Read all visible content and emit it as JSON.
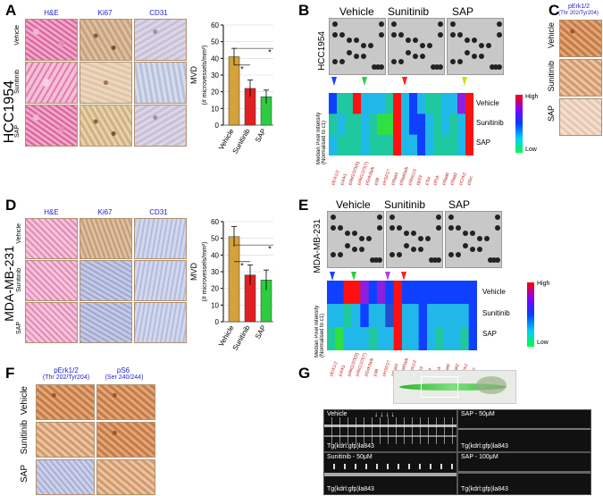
{
  "panel_letters": {
    "a": "A",
    "b": "B",
    "c": "C",
    "d": "D",
    "e": "E",
    "f": "F",
    "g": "G"
  },
  "panel_a": {
    "cell_line": "HCC1954",
    "columns": [
      "H&E",
      "Ki67",
      "CD31"
    ],
    "rows": [
      "Vehicle",
      "Sunitinib",
      "SAP"
    ]
  },
  "panel_d": {
    "cell_line": "MDA-MB-231",
    "columns": [
      "H&E",
      "Ki67",
      "CD31"
    ],
    "rows": [
      "Vehicle",
      "Sunitinib",
      "SAP"
    ]
  },
  "mvd_chart_label": {
    "ylabel_main": "MVD",
    "ylabel_sub": "(# microvessels/mm²)",
    "sig": "*"
  },
  "chart_data": [
    {
      "type": "bar",
      "categories": [
        "Vehicle",
        "Sunitinib",
        "SAP"
      ],
      "values": [
        41,
        22,
        17
      ],
      "errors": [
        5,
        5,
        4
      ],
      "ylabel": "MVD (# microvessels/mm²)",
      "ylim": [
        0,
        60
      ],
      "yticks": [
        0,
        10,
        20,
        30,
        40,
        50,
        60
      ],
      "colors": [
        "#d4a13a",
        "#e02020",
        "#2ecc40"
      ],
      "significance": "*"
    },
    {
      "type": "bar",
      "categories": [
        "Vehicle",
        "Sunitinib",
        "SAP"
      ],
      "values": [
        51,
        28,
        25
      ],
      "errors": [
        6,
        6,
        6
      ],
      "ylabel": "MVD (# microvessels/mm²)",
      "ylim": [
        0,
        60
      ],
      "yticks": [
        0,
        10,
        20,
        30,
        40,
        50,
        60
      ],
      "colors": [
        "#d4a13a",
        "#e02020",
        "#2ecc40"
      ],
      "significance": "*"
    }
  ],
  "panel_b": {
    "cell_line": "HCC1954",
    "treatments": [
      "Vehicle",
      "Sunitinib",
      "SAP"
    ],
    "heat_rows": [
      "Vehicle",
      "Sunitinib",
      "SAP"
    ],
    "heat_ylabel": "Median Pixel Intensity (Normalised to c1)",
    "legend_high": "High",
    "legend_low": "Low",
    "proteins": [
      "pErk1/2",
      "pJnk1",
      "pAkt1/2/3(S)",
      "pAkt1/2/3(T)",
      "pGsk3a/b",
      "p38",
      "pHSP27",
      "pStat3",
      "pStat5a/b",
      "pMsk1/2",
      "pp53",
      "pTor",
      "pRsk",
      "pStat6",
      "pStat2",
      "pChk2",
      "pSrc"
    ]
  },
  "panel_e": {
    "cell_line": "MDA-MB-231",
    "treatments": [
      "Vehicle",
      "Sunitinib",
      "SAP"
    ],
    "heat_rows": [
      "Vehicle",
      "Sunitinib",
      "SAP"
    ],
    "heat_ylabel": "Median Pixel Intensity (Normalised to c1)",
    "legend_high": "High",
    "legend_low": "Low",
    "proteins": [
      "pErk1/2",
      "pJnk1",
      "pAkt1/2/3(S)",
      "pAkt1/2/3(T)",
      "pGsk3a/b",
      "p38",
      "pHSP27",
      "pStat3",
      "pStat5a/b",
      "pMsk1/2",
      "pp53",
      "pTor",
      "pRsk",
      "pStat6",
      "pStat2",
      "pChk2",
      "pSrc"
    ]
  },
  "panel_c": {
    "header_line1": "pErk1/2",
    "header_line2": "(Thr 202/Tyr204)",
    "rows": [
      "Vehicle",
      "Sunitinib",
      "SAP"
    ]
  },
  "panel_f": {
    "col1_line1": "pErk1/2",
    "col1_line2": "(Thr 202/Tyr204)",
    "col2_line1": "pS6",
    "col2_line2": "(Ser 240/244)",
    "rows": [
      "Vehicle",
      "Sunitinib",
      "SAP"
    ]
  },
  "panel_g": {
    "images": [
      {
        "title": "Vehicle",
        "caption": "Tg(kdrl:gfp)la843"
      },
      {
        "title": "SAP - 50μM",
        "caption": "Tg(kdrl:gfp)la843"
      },
      {
        "title": "Sunitinib - 50μM",
        "caption": "Tg(kdrl:gfp)la843"
      },
      {
        "title": "SAP - 100μM",
        "caption": "Tg(kdrl:gfp)la843"
      }
    ]
  }
}
